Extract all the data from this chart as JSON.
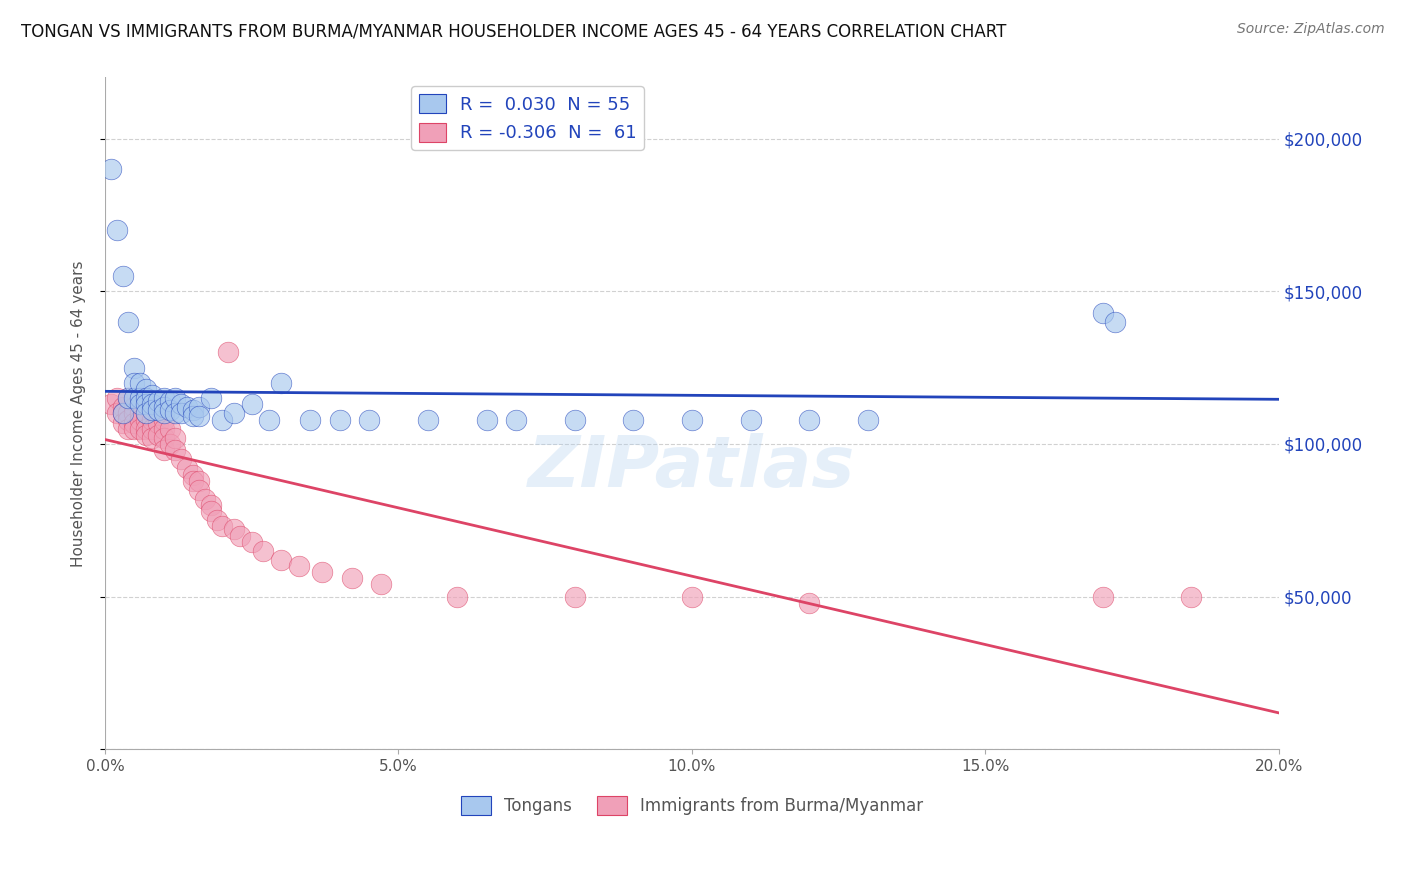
{
  "title": "TONGAN VS IMMIGRANTS FROM BURMA/MYANMAR HOUSEHOLDER INCOME AGES 45 - 64 YEARS CORRELATION CHART",
  "source": "Source: ZipAtlas.com",
  "ylabel": "Householder Income Ages 45 - 64 years",
  "xlim": [
    0.0,
    0.2
  ],
  "ylim": [
    0,
    220000
  ],
  "yticks": [
    0,
    50000,
    100000,
    150000,
    200000
  ],
  "ytick_labels_left": [
    "",
    "",
    "",
    "",
    ""
  ],
  "xticks": [
    0.0,
    0.05,
    0.1,
    0.15,
    0.2
  ],
  "xtick_labels": [
    "0.0%",
    "5.0%",
    "10.0%",
    "15.0%",
    "20.0%"
  ],
  "legend_r1": "R =  0.030  N = 55",
  "legend_r2": "R = -0.306  N =  61",
  "color_blue": "#A8C8EE",
  "color_pink": "#F0A0B8",
  "line_blue": "#2244BB",
  "line_pink": "#DD4466",
  "watermark": "ZIPatlas",
  "background": "#FFFFFF",
  "grid_color": "#CCCCCC",
  "tongans_x": [
    0.001,
    0.002,
    0.003,
    0.003,
    0.004,
    0.004,
    0.005,
    0.005,
    0.005,
    0.006,
    0.006,
    0.006,
    0.007,
    0.007,
    0.007,
    0.007,
    0.008,
    0.008,
    0.008,
    0.009,
    0.009,
    0.01,
    0.01,
    0.01,
    0.011,
    0.011,
    0.012,
    0.012,
    0.013,
    0.013,
    0.014,
    0.015,
    0.015,
    0.016,
    0.016,
    0.018,
    0.02,
    0.022,
    0.025,
    0.028,
    0.03,
    0.035,
    0.04,
    0.045,
    0.055,
    0.065,
    0.07,
    0.08,
    0.09,
    0.1,
    0.11,
    0.12,
    0.13,
    0.17,
    0.172
  ],
  "tongans_y": [
    190000,
    170000,
    155000,
    110000,
    140000,
    115000,
    125000,
    120000,
    115000,
    120000,
    115000,
    113000,
    118000,
    115000,
    113000,
    110000,
    116000,
    113000,
    111000,
    114000,
    111000,
    115000,
    112000,
    110000,
    114000,
    111000,
    115000,
    110000,
    113000,
    110000,
    112000,
    111000,
    109000,
    112000,
    109000,
    115000,
    108000,
    110000,
    113000,
    108000,
    120000,
    108000,
    108000,
    108000,
    108000,
    108000,
    108000,
    108000,
    108000,
    108000,
    108000,
    108000,
    108000,
    143000,
    140000
  ],
  "burma_x": [
    0.001,
    0.002,
    0.002,
    0.003,
    0.003,
    0.003,
    0.004,
    0.004,
    0.004,
    0.004,
    0.005,
    0.005,
    0.005,
    0.005,
    0.006,
    0.006,
    0.006,
    0.007,
    0.007,
    0.007,
    0.007,
    0.008,
    0.008,
    0.008,
    0.009,
    0.009,
    0.01,
    0.01,
    0.01,
    0.01,
    0.011,
    0.011,
    0.012,
    0.012,
    0.013,
    0.014,
    0.015,
    0.015,
    0.016,
    0.016,
    0.017,
    0.018,
    0.018,
    0.019,
    0.02,
    0.021,
    0.022,
    0.023,
    0.025,
    0.027,
    0.03,
    0.033,
    0.037,
    0.042,
    0.047,
    0.06,
    0.08,
    0.1,
    0.12,
    0.17,
    0.185
  ],
  "burma_y": [
    113000,
    115000,
    110000,
    112000,
    110000,
    107000,
    115000,
    110000,
    108000,
    105000,
    112000,
    110000,
    107000,
    105000,
    110000,
    108000,
    105000,
    110000,
    108000,
    105000,
    103000,
    108000,
    105000,
    102000,
    107000,
    103000,
    108000,
    105000,
    102000,
    98000,
    105000,
    100000,
    102000,
    98000,
    95000,
    92000,
    90000,
    88000,
    88000,
    85000,
    82000,
    80000,
    78000,
    75000,
    73000,
    130000,
    72000,
    70000,
    68000,
    65000,
    62000,
    60000,
    58000,
    56000,
    54000,
    50000,
    50000,
    50000,
    48000,
    50000,
    50000
  ]
}
